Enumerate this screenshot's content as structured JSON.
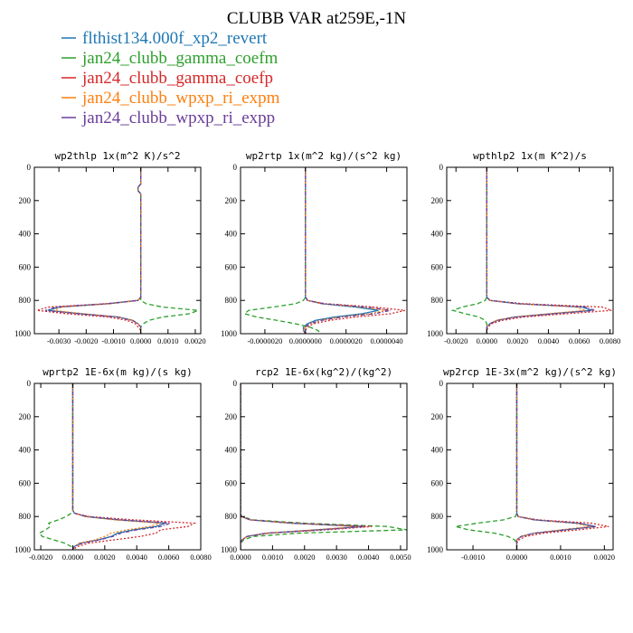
{
  "title": "CLUBB VAR at259E,-1N",
  "legend": {
    "placement": "top-left",
    "entries": [
      {
        "name": "flthist134.000f_xp2_revert",
        "color": "#1f77b4"
      },
      {
        "name": "jan24_clubb_gamma_coefm",
        "color": "#2ca02c"
      },
      {
        "name": "jan24_clubb_gamma_coefp",
        "color": "#d62728"
      },
      {
        "name": "jan24_clubb_wpxp_ri_expm",
        "color": "#ff7f0e"
      },
      {
        "name": "jan24_clubb_wpxp_ri_expp",
        "color": "#6a3d9a"
      }
    ]
  },
  "series_colors": [
    "#1f77b4",
    "#2ca02c",
    "#d62728",
    "#ff7f0e",
    "#6a3d9a",
    "#3b5bdb"
  ],
  "chart_data": [
    {
      "type": "line",
      "title": "wp2thlp  1x(m^2 K)/s^2",
      "xlim": [
        -0.0039,
        0.0022
      ],
      "ylim": [
        1000,
        0
      ],
      "xticks": [
        -0.003,
        -0.002,
        -0.001,
        0.0,
        0.001,
        0.002
      ],
      "xtick_labels": [
        "-0.0030",
        "-0.0020",
        "-0.0010",
        "0.0000",
        "0.0010",
        "0.0020"
      ],
      "yticks": [
        0,
        200,
        400,
        600,
        800,
        1000
      ],
      "ytick_labels": [
        "0",
        "200",
        "400",
        "600",
        "800",
        "1000"
      ],
      "levels": [
        0,
        100,
        120,
        140,
        160,
        200,
        300,
        400,
        500,
        600,
        700,
        780,
        800,
        820,
        840,
        860,
        880,
        900,
        920,
        940,
        960,
        980,
        1000
      ],
      "series": [
        {
          "values": [
            0,
            0,
            -0.0001,
            -0.0001,
            0,
            0,
            0,
            0,
            0,
            0,
            0,
            0,
            -0.0001,
            -0.0012,
            -0.003,
            -0.0034,
            -0.0022,
            -0.0008,
            -0.0003,
            -0.0001,
            0,
            0,
            0
          ]
        },
        {
          "values": [
            0,
            0,
            -0.0001,
            -0.0001,
            0,
            0,
            0,
            0,
            0,
            0,
            0,
            0,
            0,
            0.0002,
            0.0008,
            0.0021,
            0.0018,
            0.0008,
            0.0003,
            0.0001,
            0,
            0,
            0
          ]
        },
        {
          "values": [
            0,
            0,
            -0.0001,
            -0.0001,
            0,
            0,
            0,
            0,
            0,
            0,
            0,
            0,
            -0.0001,
            -0.0013,
            -0.0034,
            -0.0038,
            -0.0027,
            -0.0012,
            -0.0005,
            -0.0002,
            -0.0001,
            0,
            0
          ]
        },
        {
          "values": [
            0,
            0,
            -0.0001,
            -0.0001,
            0,
            0,
            0,
            0,
            0,
            0,
            0,
            0,
            -0.0001,
            -0.0011,
            -0.0029,
            -0.0032,
            -0.0021,
            -0.0008,
            -0.0003,
            -0.0001,
            0,
            0,
            0
          ]
        },
        {
          "values": [
            0,
            0,
            -0.0001,
            -0.0001,
            0,
            0,
            0,
            0,
            0,
            0,
            0,
            0,
            -0.0001,
            -0.0012,
            -0.0031,
            -0.0035,
            -0.0023,
            -0.0009,
            -0.0003,
            -0.0001,
            0,
            0,
            0
          ]
        }
      ]
    },
    {
      "type": "line",
      "title": "wp2rtp  1x(m^2 kg)/(s^2 kg)",
      "xlim": [
        -3.2e-06,
        5e-06
      ],
      "ylim": [
        1000,
        0
      ],
      "xticks": [
        -2e-06,
        0.0,
        2e-06,
        4e-06
      ],
      "xtick_labels": [
        "-0.0000020",
        "0.0000000",
        "0.0000020",
        "0.0000040"
      ],
      "yticks": [
        0,
        200,
        400,
        600,
        800,
        1000
      ],
      "ytick_labels": [
        "0",
        "200",
        "400",
        "600",
        "800",
        "1000"
      ],
      "levels": [
        0,
        100,
        200,
        300,
        400,
        500,
        600,
        700,
        780,
        800,
        820,
        840,
        860,
        880,
        900,
        920,
        940,
        960,
        980,
        1000
      ],
      "series": [
        {
          "values": [
            0,
            0,
            0,
            0,
            0,
            0,
            0,
            0,
            0,
            1e-07,
            8e-07,
            2.5e-06,
            3.6e-06,
            2.8e-06,
            1.4e-06,
            5e-07,
            1e-07,
            -1e-07,
            -1e-07,
            0
          ]
        },
        {
          "values": [
            0,
            0,
            0,
            0,
            0,
            0,
            0,
            0,
            0,
            -1e-07,
            -5e-07,
            -1.6e-06,
            -2.8e-06,
            -3e-06,
            -2.4e-06,
            -1.4e-06,
            -5e-07,
            2e-07,
            6e-07,
            8e-07
          ]
        },
        {
          "values": [
            0,
            0,
            0,
            0,
            0,
            0,
            0,
            0,
            0,
            1e-07,
            1e-06,
            3.4e-06,
            4.9e-06,
            4.2e-06,
            2.5e-06,
            1.2e-06,
            4e-07,
            1e-07,
            0,
            0
          ]
        },
        {
          "values": [
            0,
            0,
            0,
            0,
            0,
            0,
            0,
            0,
            0,
            1e-07,
            8e-07,
            2.8e-06,
            4e-06,
            3.2e-06,
            1.7e-06,
            7e-07,
            2e-07,
            0,
            -1e-07,
            0
          ]
        },
        {
          "values": [
            0,
            0,
            0,
            0,
            0,
            0,
            0,
            0,
            0,
            1e-07,
            9e-07,
            3e-06,
            4.2e-06,
            3.4e-06,
            1.8e-06,
            8e-07,
            2e-07,
            0,
            -1e-07,
            0
          ]
        }
      ]
    },
    {
      "type": "line",
      "title": "wpthlp2  1x(m K^2)/s",
      "xlim": [
        -0.0026,
        0.0082
      ],
      "ylim": [
        1000,
        0
      ],
      "xticks": [
        -0.002,
        0.0,
        0.002,
        0.004,
        0.006,
        0.008
      ],
      "xtick_labels": [
        "-0.0020",
        "0.0000",
        "0.0020",
        "0.0040",
        "0.0060",
        "0.0080"
      ],
      "yticks": [
        0,
        200,
        400,
        600,
        800,
        1000
      ],
      "ytick_labels": [
        "0",
        "200",
        "400",
        "600",
        "800",
        "1000"
      ],
      "levels": [
        0,
        100,
        200,
        300,
        400,
        500,
        600,
        700,
        780,
        800,
        820,
        840,
        860,
        880,
        900,
        920,
        940,
        960,
        980,
        1000
      ],
      "series": [
        {
          "values": [
            0,
            0,
            0,
            0,
            0,
            0,
            0,
            0,
            0,
            0.0002,
            0.002,
            0.0062,
            0.0068,
            0.0042,
            0.0018,
            0.0007,
            0.0002,
            0,
            0,
            0
          ]
        },
        {
          "values": [
            0,
            0,
            0,
            0,
            0,
            0,
            0,
            0,
            0,
            -0.0001,
            -0.0006,
            -0.0016,
            -0.0022,
            -0.0014,
            -0.0005,
            -0.0001,
            0,
            0,
            0,
            0
          ]
        },
        {
          "values": [
            0,
            0,
            0,
            0,
            0,
            0,
            0,
            0,
            0,
            0.0002,
            0.0024,
            0.0075,
            0.0081,
            0.0052,
            0.0024,
            0.001,
            0.0003,
            0.0001,
            0,
            0
          ]
        },
        {
          "values": [
            0,
            0,
            0,
            0,
            0,
            0,
            0,
            0,
            0,
            0.0002,
            0.0019,
            0.0058,
            0.0064,
            0.004,
            0.0017,
            0.0006,
            0.0002,
            0,
            0,
            0
          ]
        },
        {
          "values": [
            0,
            0,
            0,
            0,
            0,
            0,
            0,
            0,
            0,
            0.0002,
            0.0021,
            0.0064,
            0.007,
            0.0044,
            0.0019,
            0.0007,
            0.0002,
            0,
            0,
            0
          ]
        }
      ]
    },
    {
      "type": "line",
      "title": "wprtp2  1E-6x(m kg)/(s kg)",
      "xlim": [
        -0.0024,
        0.008
      ],
      "ylim": [
        1000,
        0
      ],
      "xticks": [
        -0.002,
        0.0,
        0.002,
        0.004,
        0.006,
        0.008
      ],
      "xtick_labels": [
        "-0.0020",
        "0.0000",
        "0.0020",
        "0.0040",
        "0.0060",
        "0.0080"
      ],
      "yticks": [
        0,
        200,
        400,
        600,
        800,
        1000
      ],
      "ytick_labels": [
        "0",
        "200",
        "400",
        "600",
        "800",
        "1000"
      ],
      "levels": [
        0,
        100,
        200,
        300,
        400,
        500,
        600,
        700,
        760,
        780,
        800,
        820,
        840,
        860,
        880,
        900,
        920,
        940,
        960,
        980,
        1000
      ],
      "series": [
        {
          "values": [
            0,
            0,
            0,
            0,
            0,
            0,
            0,
            0,
            0,
            0.0001,
            0.0008,
            0.0028,
            0.0058,
            0.0052,
            0.0038,
            0.0028,
            0.0024,
            0.0016,
            0.0005,
            0.0001,
            0
          ]
        },
        {
          "values": [
            0,
            0,
            0,
            0,
            0,
            0,
            0,
            0,
            0,
            -0.0001,
            -0.0004,
            -0.0009,
            -0.0015,
            -0.0014,
            -0.0017,
            -0.0021,
            -0.0019,
            -0.0012,
            -0.0005,
            -0.0001,
            0
          ]
        },
        {
          "values": [
            0,
            0,
            0,
            0,
            0,
            0,
            0,
            0,
            0,
            0.0001,
            0.001,
            0.0038,
            0.0076,
            0.0072,
            0.0055,
            0.0052,
            0.0042,
            0.0026,
            0.001,
            0.0003,
            0
          ]
        },
        {
          "values": [
            0,
            0,
            0,
            0,
            0,
            0,
            0,
            0,
            0,
            0.0001,
            0.0008,
            0.0026,
            0.0055,
            0.0048,
            0.0034,
            0.0024,
            0.002,
            0.0014,
            0.0004,
            0.0001,
            0
          ]
        },
        {
          "values": [
            0,
            0,
            0,
            0,
            0,
            0,
            0,
            0,
            0,
            0.0001,
            0.0009,
            0.003,
            0.0061,
            0.0055,
            0.004,
            0.003,
            0.0025,
            0.0017,
            0.0006,
            0.0001,
            0
          ]
        }
      ]
    },
    {
      "type": "line",
      "title": "rcp2  1E-6x(kg^2)/(kg^2)",
      "xlim": [
        0.0,
        0.0052
      ],
      "ylim": [
        1000,
        0
      ],
      "xticks": [
        0.0,
        0.001,
        0.002,
        0.003,
        0.004,
        0.005
      ],
      "xtick_labels": [
        "0.0000",
        "0.0010",
        "0.0020",
        "0.0030",
        "0.0040",
        "0.0050"
      ],
      "yticks": [
        0,
        200,
        400,
        600,
        800,
        1000
      ],
      "ytick_labels": [
        "0",
        "200",
        "400",
        "600",
        "800",
        "1000"
      ],
      "levels": [
        0,
        100,
        200,
        300,
        400,
        500,
        600,
        700,
        780,
        800,
        820,
        840,
        860,
        880,
        900,
        920,
        940,
        960,
        980,
        1000
      ],
      "series": [
        {
          "values": [
            0,
            0,
            0,
            0,
            0,
            0,
            0,
            0,
            0,
            2e-05,
            0.0003,
            0.0016,
            0.0038,
            0.0024,
            0.0008,
            0.0002,
            5e-05,
            0,
            0,
            0
          ]
        },
        {
          "values": [
            0,
            0,
            0,
            0,
            0,
            0,
            0,
            0,
            0,
            3e-05,
            0.0004,
            0.002,
            0.0046,
            0.0052,
            0.0018,
            0.0004,
            0.0001,
            0,
            0,
            0
          ]
        },
        {
          "values": [
            0,
            0,
            0,
            0,
            0,
            0,
            0,
            0,
            0,
            2e-05,
            0.0003,
            0.0017,
            0.0041,
            0.0027,
            0.0009,
            0.0002,
            5e-05,
            0,
            0,
            0
          ]
        },
        {
          "values": [
            0,
            0,
            0,
            0,
            0,
            0,
            0,
            0,
            0,
            2e-05,
            0.0003,
            0.0016,
            0.0037,
            0.0023,
            0.0008,
            0.0002,
            5e-05,
            0,
            0,
            0
          ]
        },
        {
          "values": [
            0,
            0,
            0,
            0,
            0,
            0,
            0,
            0,
            0,
            2e-05,
            0.0003,
            0.0016,
            0.0039,
            0.0025,
            0.0008,
            0.0002,
            5e-05,
            0,
            0,
            0
          ]
        }
      ]
    },
    {
      "type": "line",
      "title": "wp2rcp  1E-3x(m^2 kg)/(s^2 kg)",
      "xlim": [
        -0.0016,
        0.0022
      ],
      "ylim": [
        1000,
        0
      ],
      "xticks": [
        -0.001,
        0.0,
        0.001,
        0.002
      ],
      "xtick_labels": [
        "-0.0010",
        "0.0000",
        "0.0010",
        "0.0020"
      ],
      "yticks": [
        0,
        200,
        400,
        600,
        800,
        1000
      ],
      "ytick_labels": [
        "0",
        "200",
        "400",
        "600",
        "800",
        "1000"
      ],
      "levels": [
        0,
        100,
        200,
        300,
        400,
        500,
        600,
        700,
        780,
        800,
        820,
        840,
        860,
        880,
        900,
        920,
        940,
        960,
        980,
        1000
      ],
      "series": [
        {
          "values": [
            0,
            0,
            0,
            0,
            0,
            0,
            0,
            0,
            0,
            3e-05,
            0.0004,
            0.0014,
            0.0018,
            0.0011,
            0.0004,
            0.0001,
            0,
            0,
            0,
            0
          ]
        },
        {
          "values": [
            0,
            0,
            0,
            0,
            0,
            0,
            0,
            0,
            0,
            -3e-05,
            -0.0003,
            -0.0009,
            -0.0014,
            -0.0011,
            -0.0005,
            -0.0002,
            -5e-05,
            0,
            0,
            0
          ]
        },
        {
          "values": [
            0,
            0,
            0,
            0,
            0,
            0,
            0,
            0,
            0,
            3e-05,
            0.0005,
            0.0017,
            0.0021,
            0.0014,
            0.0006,
            0.0002,
            5e-05,
            0,
            0,
            0
          ]
        },
        {
          "values": [
            0,
            0,
            0,
            0,
            0,
            0,
            0,
            0,
            0,
            3e-05,
            0.0004,
            0.0013,
            0.0017,
            0.001,
            0.0004,
            0.0001,
            0,
            0,
            0,
            0
          ]
        },
        {
          "values": [
            0,
            0,
            0,
            0,
            0,
            0,
            0,
            0,
            0,
            3e-05,
            0.0004,
            0.0014,
            0.0018,
            0.0011,
            0.0004,
            0.0001,
            0,
            0,
            0,
            0
          ]
        }
      ]
    }
  ]
}
